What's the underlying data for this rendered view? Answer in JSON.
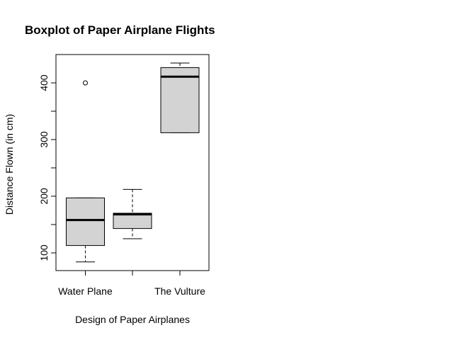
{
  "chart_data": {
    "type": "boxplot",
    "title": "Boxplot of Paper Airplane Flights",
    "xlabel": "Design of Paper Airplanes",
    "ylabel": "Distance Flown (in cm)",
    "ylim": [
      70,
      450
    ],
    "y_ticks": [
      100,
      200,
      300,
      400
    ],
    "categories": [
      "Water Plane",
      "",
      "The Vulture"
    ],
    "box_fill": "#d3d3d3",
    "boxes": [
      {
        "whisker_low": 84,
        "q1": 113,
        "median": 158,
        "q3": 197,
        "whisker_high": 197,
        "outliers": [
          400
        ]
      },
      {
        "whisker_low": 125,
        "q1": 143,
        "median": 168,
        "q3": 170,
        "whisker_high": 212,
        "outliers": []
      },
      {
        "whisker_low": 312,
        "q1": 312,
        "median": 411,
        "q3": 427,
        "whisker_high": 435,
        "outliers": []
      }
    ]
  }
}
